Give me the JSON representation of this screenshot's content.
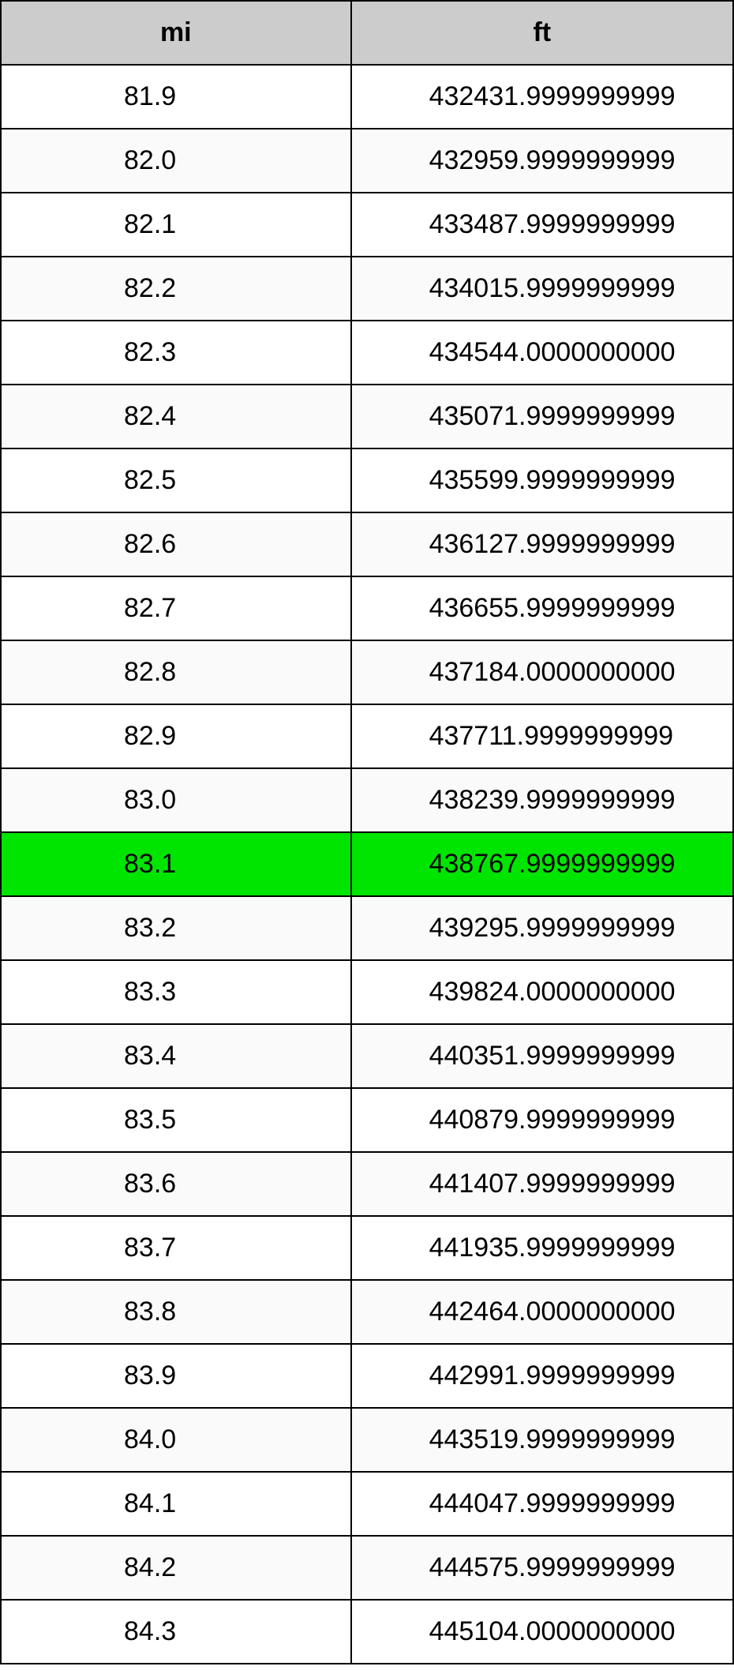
{
  "conversion_table": {
    "type": "table",
    "columns": [
      "mi",
      "ft"
    ],
    "highlight_index": 12,
    "colors": {
      "header_bg": "#cccccc",
      "row_even_bg": "#ffffff",
      "row_odd_bg": "#fafafa",
      "highlight_bg": "#00e500",
      "border": "#000000",
      "text": "#000000"
    },
    "font": {
      "size_pt": 26,
      "header_weight": "bold",
      "body_weight": "normal"
    },
    "column_widths_pct": [
      47.8,
      52.2
    ],
    "column_alignment": [
      "left-indent",
      "left-indent"
    ],
    "rows": [
      [
        "81.9",
        "432431.9999999999"
      ],
      [
        "82.0",
        "432959.9999999999"
      ],
      [
        "82.1",
        "433487.9999999999"
      ],
      [
        "82.2",
        "434015.9999999999"
      ],
      [
        "82.3",
        "434544.0000000000"
      ],
      [
        "82.4",
        "435071.9999999999"
      ],
      [
        "82.5",
        "435599.9999999999"
      ],
      [
        "82.6",
        "436127.9999999999"
      ],
      [
        "82.7",
        "436655.9999999999"
      ],
      [
        "82.8",
        "437184.0000000000"
      ],
      [
        "82.9",
        "437711.9999999999"
      ],
      [
        "83.0",
        "438239.9999999999"
      ],
      [
        "83.1",
        "438767.9999999999"
      ],
      [
        "83.2",
        "439295.9999999999"
      ],
      [
        "83.3",
        "439824.0000000000"
      ],
      [
        "83.4",
        "440351.9999999999"
      ],
      [
        "83.5",
        "440879.9999999999"
      ],
      [
        "83.6",
        "441407.9999999999"
      ],
      [
        "83.7",
        "441935.9999999999"
      ],
      [
        "83.8",
        "442464.0000000000"
      ],
      [
        "83.9",
        "442991.9999999999"
      ],
      [
        "84.0",
        "443519.9999999999"
      ],
      [
        "84.1",
        "444047.9999999999"
      ],
      [
        "84.2",
        "444575.9999999999"
      ],
      [
        "84.3",
        "445104.0000000000"
      ]
    ]
  }
}
